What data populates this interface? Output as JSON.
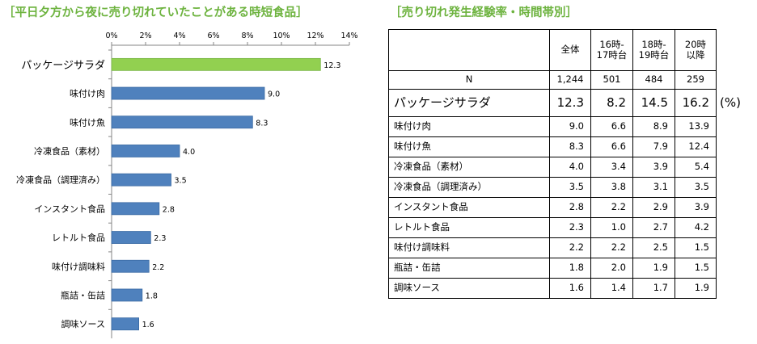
{
  "chart_title": "［平日夕方から夜に売り切れていたことがある時短食品］",
  "table_title": "［売り切れ発生経験率・時間帯別］",
  "colors": {
    "highlight": "#92d050",
    "bar": "#4f81bd",
    "title": "#6db33f"
  },
  "chart_data": {
    "type": "bar",
    "orientation": "horizontal",
    "categories": [
      "パッケージサラダ",
      "味付け肉",
      "味付け魚",
      "冷凍食品（素材）",
      "冷凍食品（調理済み）",
      "インスタント食品",
      "レトルト食品",
      "味付け調味料",
      "瓶詰・缶詰",
      "調味ソース"
    ],
    "values": [
      12.3,
      9.0,
      8.3,
      4.0,
      3.5,
      2.8,
      2.3,
      2.2,
      1.8,
      1.6
    ],
    "value_labels": [
      "12.3",
      "9.0",
      "8.3",
      "4.0",
      "3.5",
      "2.8",
      "2.3",
      "2.2",
      "1.8",
      "1.6"
    ],
    "xlim": [
      0,
      14
    ],
    "x_ticks": [
      "0%",
      "2%",
      "4%",
      "6%",
      "8%",
      "10%",
      "12%",
      "14%"
    ],
    "x_axis_position": "top",
    "highlight_index": 0,
    "grid": false,
    "legend": "none"
  },
  "table": {
    "headers": [
      "",
      "全体",
      "16時-\n17時台",
      "18時-\n19時台",
      "20時\n以降"
    ],
    "n_row": [
      "N",
      "1,244",
      "501",
      "484",
      "259"
    ],
    "unit": "(%)",
    "rows": [
      [
        "パッケージサラダ",
        "12.3",
        "8.2",
        "14.5",
        "16.2"
      ],
      [
        "味付け肉",
        "9.0",
        "6.6",
        "8.9",
        "13.9"
      ],
      [
        "味付け魚",
        "8.3",
        "6.6",
        "7.9",
        "12.4"
      ],
      [
        "冷凍食品（素材）",
        "4.0",
        "3.4",
        "3.9",
        "5.4"
      ],
      [
        "冷凍食品（調理済み）",
        "3.5",
        "3.8",
        "3.1",
        "3.5"
      ],
      [
        "インスタント食品",
        "2.8",
        "2.2",
        "2.9",
        "3.9"
      ],
      [
        "レトルト食品",
        "2.3",
        "1.0",
        "2.7",
        "4.2"
      ],
      [
        "味付け調味料",
        "2.2",
        "2.2",
        "2.5",
        "1.5"
      ],
      [
        "瓶詰・缶詰",
        "1.8",
        "2.0",
        "1.9",
        "1.5"
      ],
      [
        "調味ソース",
        "1.6",
        "1.4",
        "1.7",
        "1.9"
      ]
    ]
  }
}
